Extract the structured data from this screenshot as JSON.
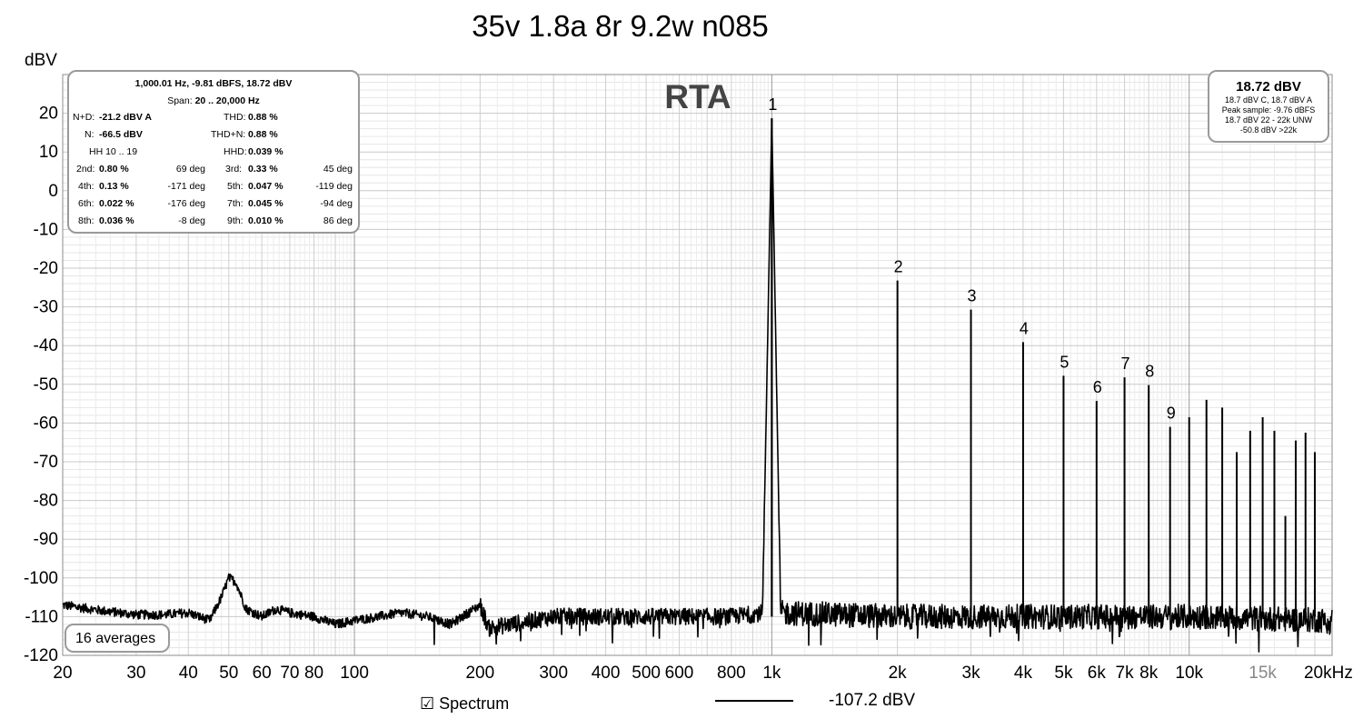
{
  "title": "35v 1.8a 8r 9.2w n085",
  "chart_data": {
    "type": "line",
    "title": "35v 1.8a 8r 9.2w n085",
    "watermark": "RTA",
    "ylabel": "dBV",
    "xunit": "kHz",
    "xscale": "log",
    "xlim": [
      20,
      22000
    ],
    "ylim": [
      -120,
      30
    ],
    "grid": true,
    "yticks": [
      20,
      10,
      0,
      -10,
      -20,
      -30,
      -40,
      -50,
      -60,
      -70,
      -80,
      -90,
      -100,
      -110,
      -120
    ],
    "ytick_labels": [
      "20",
      "10",
      "0",
      "-10",
      "-20",
      "-30",
      "-40",
      "-50",
      "-60",
      "-70",
      "-80",
      "-90",
      "-100",
      "-110",
      "-120"
    ],
    "xticks": [
      20,
      30,
      40,
      50,
      60,
      70,
      80,
      100,
      200,
      300,
      400,
      500,
      600,
      800,
      1000,
      2000,
      3000,
      4000,
      5000,
      6000,
      7000,
      8000,
      10000,
      15000,
      20000
    ],
    "xtick_labels": [
      "20",
      "30",
      "40",
      "50",
      "60",
      "70",
      "80",
      "100",
      "200",
      "300",
      "400",
      "500",
      "600",
      "800",
      "1k",
      "2k",
      "3k",
      "4k",
      "5k",
      "6k",
      "7k",
      "8k",
      "10k",
      "15k",
      "20kHz"
    ],
    "series": [
      {
        "name": "Spectrum",
        "color": "#000000",
        "noise_floor_points": [
          [
            20,
            -107
          ],
          [
            25,
            -108.5
          ],
          [
            30,
            -109.5
          ],
          [
            35,
            -109.5
          ],
          [
            40,
            -109
          ],
          [
            45,
            -111
          ],
          [
            48,
            -105
          ],
          [
            50,
            -100
          ],
          [
            52,
            -101
          ],
          [
            55,
            -108
          ],
          [
            60,
            -110
          ],
          [
            65,
            -108
          ],
          [
            70,
            -109
          ],
          [
            80,
            -110
          ],
          [
            90,
            -112
          ],
          [
            100,
            -111
          ],
          [
            130,
            -109
          ],
          [
            150,
            -110
          ],
          [
            170,
            -112
          ],
          [
            200,
            -107
          ],
          [
            210,
            -113
          ],
          [
            300,
            -110
          ],
          [
            500,
            -110
          ],
          [
            800,
            -110
          ],
          [
            950,
            -109
          ],
          [
            1000,
            18.72
          ],
          [
            1050,
            -109
          ],
          [
            2000,
            -110
          ],
          [
            10000,
            -110
          ],
          [
            22000,
            -111
          ]
        ],
        "harmonic_peaks": [
          {
            "label": "1",
            "freq": 1000,
            "dbv": 18.7
          },
          {
            "label": "2",
            "freq": 2000,
            "dbv": -23.2
          },
          {
            "label": "3",
            "freq": 3000,
            "dbv": -30.7
          },
          {
            "label": "4",
            "freq": 4000,
            "dbv": -39.1
          },
          {
            "label": "5",
            "freq": 5000,
            "dbv": -47.8
          },
          {
            "label": "6",
            "freq": 6000,
            "dbv": -54.3
          },
          {
            "label": "7",
            "freq": 7000,
            "dbv": -48.2
          },
          {
            "label": "8",
            "freq": 8000,
            "dbv": -50.2
          },
          {
            "label": "9",
            "freq": 9000,
            "dbv": -61.0
          }
        ],
        "upper_peaks": [
          {
            "freq": 10000,
            "dbv": -58.5
          },
          {
            "freq": 11000,
            "dbv": -54.0
          },
          {
            "freq": 12000,
            "dbv": -56.0
          },
          {
            "freq": 13000,
            "dbv": -67.5
          },
          {
            "freq": 14000,
            "dbv": -62.0
          },
          {
            "freq": 15000,
            "dbv": -58.5
          },
          {
            "freq": 16000,
            "dbv": -62.0
          },
          {
            "freq": 17000,
            "dbv": -84.0
          },
          {
            "freq": 18000,
            "dbv": -64.5
          },
          {
            "freq": 19000,
            "dbv": -62.5
          },
          {
            "freq": 20000,
            "dbv": -67.5
          }
        ]
      }
    ]
  },
  "info_panel": {
    "header": "1,000.01 Hz, -9.81 dBFS, 18.72 dBV",
    "span_label": "Span:",
    "span_value": "20 .. 20,000 Hz",
    "nd_label": "N+D:",
    "nd_value": "-21.2 dBV A",
    "thd_label": "THD:",
    "thd_value": "0.88 %",
    "n_label": "N:",
    "n_value": "-66.5 dBV",
    "thdn_label": "THD+N:",
    "thdn_value": "0.88 %",
    "hh_label": "HH 10 .. 19",
    "hhd_label": "HHD:",
    "hhd_value": "0.039 %",
    "harmonics": [
      {
        "label": "2nd:",
        "pct": "0.80 %",
        "deg": "69 deg",
        "label2": "3rd:",
        "pct2": "0.33 %",
        "deg2": "45 deg"
      },
      {
        "label": "4th:",
        "pct": "0.13 %",
        "deg": "-171 deg",
        "label2": "5th:",
        "pct2": "0.047 %",
        "deg2": "-119 deg"
      },
      {
        "label": "6th:",
        "pct": "0.022 %",
        "deg": "-176 deg",
        "label2": "7th:",
        "pct2": "0.045 %",
        "deg2": "-94 deg"
      },
      {
        "label": "8th:",
        "pct": "0.036 %",
        "deg": "-8 deg",
        "label2": "9th:",
        "pct2": "0.010 %",
        "deg2": "86 deg"
      }
    ]
  },
  "level_panel": {
    "main": "18.72 dBV",
    "line1": "18.7 dBV C, 18.7 dBV A",
    "line2": "Peak sample: -9.76 dBFS",
    "line3": "18.7 dBV 22 - 22k UNW",
    "line4": "-50.8 dBV >22k"
  },
  "averages_label": "16 averages",
  "legend": {
    "checkbox_glyph": "☑",
    "series_label": "Spectrum",
    "cursor_value": "-107.2 dBV"
  }
}
